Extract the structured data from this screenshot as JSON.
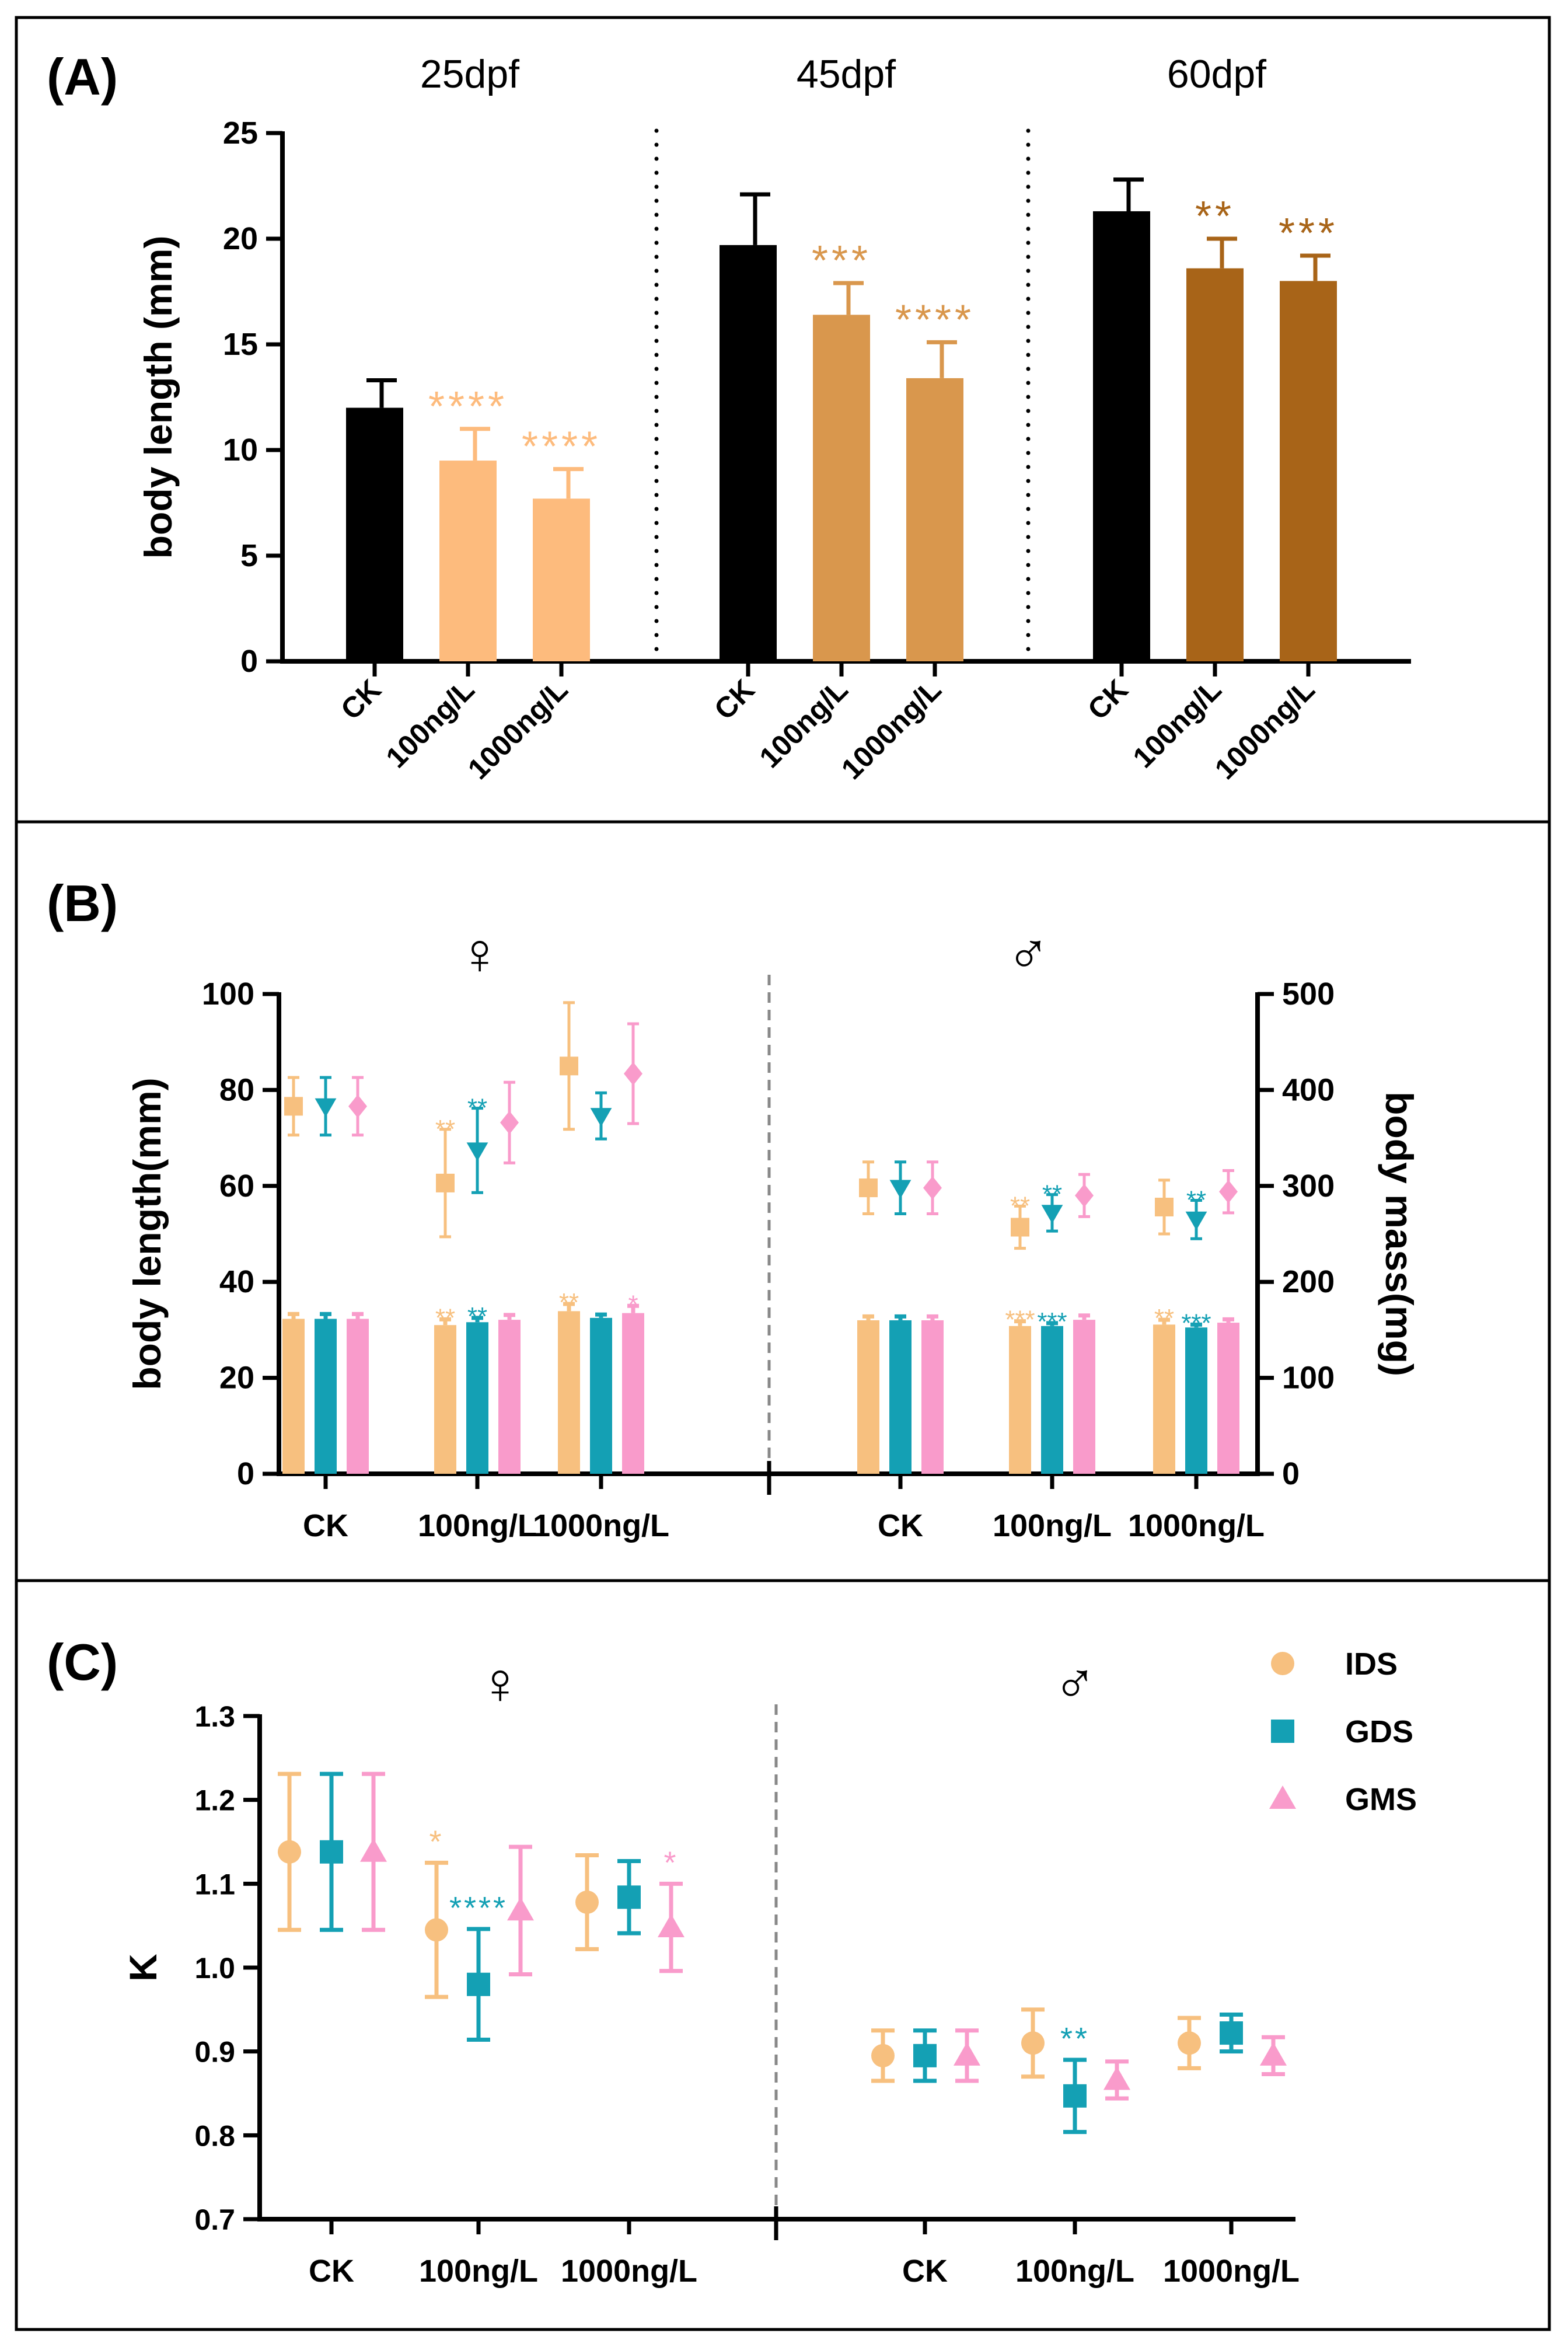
{
  "colors": {
    "black": "#000000",
    "A_25": "#FDBB7D",
    "A_45": "#D9974D",
    "A_60": "#A86418",
    "IDS": "#F7C07F",
    "GDS": "#14A0B4",
    "GMS": "#F99BCB",
    "divider": "#888888"
  },
  "chart_data": [
    {
      "panel": "(A)",
      "type": "bar",
      "ylabel": "body length (mm)",
      "ylim": [
        0,
        25
      ],
      "yticks": [
        "0",
        "5",
        "10",
        "15",
        "20",
        "25"
      ],
      "groups": [
        {
          "title": "25dpf",
          "categories": [
            "CK",
            "100ng/L",
            "1000ng/L"
          ],
          "values": [
            12.0,
            9.5,
            7.7
          ],
          "errors": [
            1.3,
            1.5,
            1.4
          ],
          "sig": [
            "",
            "****",
            "****"
          ]
        },
        {
          "title": "45dpf",
          "categories": [
            "CK",
            "100ng/L",
            "1000ng/L"
          ],
          "values": [
            19.7,
            16.4,
            13.4
          ],
          "errors": [
            2.4,
            1.5,
            1.7
          ],
          "sig": [
            "",
            "***",
            "****"
          ]
        },
        {
          "title": "60dpf",
          "categories": [
            "CK",
            "100ng/L",
            "1000ng/L"
          ],
          "values": [
            21.3,
            18.6,
            18.0
          ],
          "errors": [
            1.5,
            1.4,
            1.2
          ],
          "sig": [
            "",
            "**",
            "***"
          ]
        }
      ]
    },
    {
      "panel": "(B)",
      "type": "bar+scatter",
      "ylabel": "body length(mm)",
      "ylabel2": "body mass(mg)",
      "ylim": [
        0,
        100
      ],
      "ylim2": [
        0,
        500
      ],
      "yticks": [
        "0",
        "20",
        "40",
        "60",
        "80",
        "100"
      ],
      "yticks2": [
        "0",
        "100",
        "200",
        "300",
        "400",
        "500"
      ],
      "series_names": [
        "IDS",
        "GDS",
        "GMS"
      ],
      "sections": [
        {
          "sex": "♀",
          "categories": [
            "CK",
            "100ng/L",
            "1000ng/L"
          ],
          "length": {
            "IDS": {
              "values": [
                32.3,
                31.0,
                33.9
              ],
              "errors": [
                1.0,
                1.2,
                1.5
              ],
              "sig": [
                "",
                "**",
                "**"
              ]
            },
            "GDS": {
              "values": [
                32.3,
                31.6,
                32.5
              ],
              "errors": [
                1.0,
                0.9,
                0.7
              ],
              "sig": [
                "",
                "**",
                ""
              ]
            },
            "GMS": {
              "values": [
                32.3,
                32.1,
                33.5
              ],
              "errors": [
                1.0,
                1.0,
                1.5
              ],
              "sig": [
                "",
                "",
                "*"
              ]
            }
          },
          "mass": {
            "IDS": {
              "values": [
                383,
                303,
                425
              ],
              "errors": [
                30,
                56,
                66
              ],
              "sig": [
                "",
                "**",
                ""
              ]
            },
            "GDS": {
              "values": [
                383,
                337,
                373
              ],
              "errors": [
                30,
                44,
                24
              ],
              "sig": [
                "",
                "**",
                ""
              ]
            },
            "GMS": {
              "values": [
                383,
                366,
                417
              ],
              "errors": [
                30,
                42,
                52
              ],
              "sig": [
                "",
                "",
                ""
              ]
            }
          }
        },
        {
          "sex": "♂",
          "categories": [
            "CK",
            "100ng/L",
            "1000ng/L"
          ],
          "length": {
            "IDS": {
              "values": [
                32.0,
                30.8,
                31.1
              ],
              "errors": [
                0.8,
                1.0,
                1.0
              ],
              "sig": [
                "",
                "***",
                "**"
              ]
            },
            "GDS": {
              "values": [
                32.0,
                30.8,
                30.5
              ],
              "errors": [
                0.8,
                0.6,
                0.6
              ],
              "sig": [
                "",
                "***",
                "***"
              ]
            },
            "GMS": {
              "values": [
                32.0,
                32.1,
                31.5
              ],
              "errors": [
                0.8,
                0.9,
                0.7
              ],
              "sig": [
                "",
                "",
                ""
              ]
            }
          },
          "mass": {
            "IDS": {
              "values": [
                298,
                257,
                278
              ],
              "errors": [
                27,
                22,
                28
              ],
              "sig": [
                "",
                "**",
                ""
              ]
            },
            "GDS": {
              "values": [
                298,
                272,
                265
              ],
              "errors": [
                27,
                19,
                20
              ],
              "sig": [
                "",
                "**",
                "**"
              ]
            },
            "GMS": {
              "values": [
                298,
                290,
                294
              ],
              "errors": [
                27,
                22,
                22
              ],
              "sig": [
                "",
                "",
                ""
              ]
            }
          }
        }
      ]
    },
    {
      "panel": "(C)",
      "type": "scatter",
      "ylabel": "K",
      "ylim": [
        0.7,
        1.3
      ],
      "yticks": [
        "0.7",
        "0.8",
        "0.9",
        "1.0",
        "1.1",
        "1.2",
        "1.3"
      ],
      "legend": [
        "IDS",
        "GDS",
        "GMS"
      ],
      "legend_position": "top-right",
      "sections": [
        {
          "sex": "♀",
          "categories": [
            "CK",
            "100ng/L",
            "1000ng/L"
          ],
          "series": {
            "IDS": {
              "values": [
                1.138,
                1.045,
                1.078
              ],
              "errors": [
                0.093,
                0.08,
                0.056
              ],
              "sig": [
                "",
                "*",
                ""
              ]
            },
            "GDS": {
              "values": [
                1.138,
                0.98,
                1.084
              ],
              "errors": [
                0.093,
                0.066,
                0.043
              ],
              "sig": [
                "",
                "****",
                ""
              ]
            },
            "GMS": {
              "values": [
                1.138,
                1.068,
                1.048
              ],
              "errors": [
                0.093,
                0.076,
                0.052
              ],
              "sig": [
                "",
                "",
                "*"
              ]
            }
          }
        },
        {
          "sex": "♂",
          "categories": [
            "CK",
            "100ng/L",
            "1000ng/L"
          ],
          "series": {
            "IDS": {
              "values": [
                0.895,
                0.91,
                0.91
              ],
              "errors": [
                0.03,
                0.04,
                0.03
              ],
              "sig": [
                "",
                "",
                ""
              ]
            },
            "GDS": {
              "values": [
                0.895,
                0.847,
                0.922
              ],
              "errors": [
                0.03,
                0.043,
                0.022
              ],
              "sig": [
                "",
                "**",
                ""
              ]
            },
            "GMS": {
              "values": [
                0.895,
                0.866,
                0.895
              ],
              "errors": [
                0.03,
                0.022,
                0.022
              ],
              "sig": [
                "",
                "",
                ""
              ]
            }
          }
        }
      ]
    }
  ]
}
